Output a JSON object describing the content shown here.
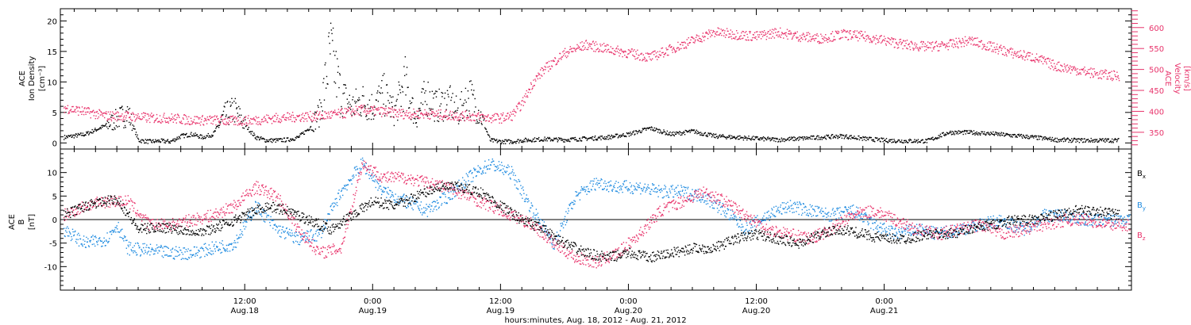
{
  "figure": {
    "xlabel": "hours:minutes, Aug. 18, 2012 - Aug. 21, 2012",
    "x_ticks": [
      {
        "top": "12:00",
        "bottom": "Aug.18"
      },
      {
        "top": "0:00",
        "bottom": "Aug.19"
      },
      {
        "top": "12:00",
        "bottom": "Aug.19"
      },
      {
        "top": "0:00",
        "bottom": "Aug.20"
      },
      {
        "top": "12:00",
        "bottom": "Aug.20"
      },
      {
        "top": "0:00",
        "bottom": "Aug.21"
      }
    ]
  },
  "colors": {
    "black": "#000000",
    "pink": "#e8336b",
    "blue": "#1f8be0"
  },
  "chart_data": [
    {
      "type": "scatter",
      "panel": "top",
      "x_unit": "hours since 2012-08-18 00:00 UT",
      "xlim": [
        -5.3,
        95.2
      ],
      "left_axis": {
        "label_lines": [
          "ACE",
          "Ion Density",
          "[cm⁻³]"
        ],
        "ylim": [
          -1,
          22
        ],
        "ticks": [
          0,
          5,
          10,
          15,
          20
        ]
      },
      "right_axis": {
        "label_lines": [
          "ACE",
          "Velocity",
          "[km/s]"
        ],
        "ylim": [
          310,
          645
        ],
        "ticks": [
          350,
          400,
          450,
          500,
          550,
          600
        ]
      },
      "series": [
        {
          "axis": "left",
          "color": "#000000",
          "x": [
            -5,
            -3,
            -1,
            0,
            1,
            2,
            3,
            4,
            5,
            6,
            7,
            8,
            9,
            10,
            11,
            12,
            13,
            14,
            15,
            16,
            17,
            18,
            19,
            20,
            21,
            22,
            23,
            24,
            25,
            26,
            27,
            28,
            29,
            30,
            31,
            32,
            33,
            34,
            35,
            36,
            37,
            38,
            40,
            42,
            44,
            46,
            48,
            50,
            52,
            54,
            56,
            58,
            60,
            62,
            64,
            66,
            68,
            70,
            72,
            74,
            76,
            78,
            80,
            82,
            84,
            86,
            88,
            90,
            92,
            94
          ],
          "y": [
            1,
            1.5,
            3,
            4,
            5,
            0.5,
            0.3,
            0.4,
            0.3,
            1.2,
            1.5,
            1,
            1.5,
            4.5,
            5.5,
            3,
            1,
            0.5,
            0.5,
            0.6,
            1,
            2.5,
            5,
            15,
            8,
            6,
            7,
            6,
            8,
            5,
            10,
            4,
            8,
            6,
            7,
            5,
            8,
            5,
            0.5,
            0.3,
            0.3,
            0.5,
            0.7,
            0.6,
            0.8,
            1,
            1.5,
            2.5,
            1.5,
            2,
            1.2,
            1,
            0.8,
            0.6,
            0.8,
            1,
            1.2,
            0.8,
            0.5,
            0.4,
            0.4,
            1.8,
            1.8,
            1.6,
            1.3,
            1,
            0.6,
            0.5,
            0.5,
            0.5
          ]
        },
        {
          "axis": "right",
          "color": "#e8336b",
          "x": [
            -5,
            -3,
            -1,
            1,
            3,
            5,
            7,
            9,
            11,
            13,
            15,
            17,
            19,
            21,
            23,
            25,
            27,
            29,
            31,
            33,
            35,
            36,
            37,
            38,
            39,
            40,
            42,
            44,
            46,
            48,
            50,
            52,
            54,
            56,
            58,
            60,
            62,
            64,
            66,
            68,
            70,
            72,
            74,
            76,
            78,
            80,
            82,
            84,
            86,
            88,
            90,
            92,
            94
          ],
          "y": [
            410,
            400,
            390,
            390,
            385,
            385,
            380,
            380,
            378,
            380,
            385,
            388,
            390,
            395,
            405,
            400,
            395,
            395,
            392,
            390,
            385,
            385,
            390,
            420,
            470,
            500,
            540,
            560,
            550,
            540,
            530,
            550,
            570,
            590,
            585,
            580,
            590,
            580,
            575,
            585,
            580,
            570,
            560,
            555,
            560,
            570,
            555,
            540,
            530,
            510,
            500,
            490,
            485
          ]
        }
      ]
    },
    {
      "type": "scatter",
      "panel": "bottom",
      "x_unit": "hours since 2012-08-18 00:00 UT",
      "xlim": [
        -5.3,
        95.2
      ],
      "left_axis": {
        "label_lines": [
          "ACE",
          "B",
          "[nT]"
        ],
        "ylim": [
          -15,
          15
        ],
        "ticks": [
          -10,
          -5,
          0,
          5,
          10
        ]
      },
      "zero_line": true,
      "legend": {
        "placement": "right"
      },
      "series": [
        {
          "name": "Bx",
          "color": "#000000",
          "x": [
            -5,
            -3,
            -1,
            0,
            2,
            4,
            6,
            8,
            10,
            12,
            14,
            16,
            18,
            20,
            22,
            24,
            26,
            28,
            30,
            32,
            34,
            36,
            38,
            40,
            42,
            44,
            46,
            48,
            50,
            52,
            54,
            56,
            58,
            60,
            62,
            64,
            66,
            68,
            70,
            72,
            74,
            76,
            78,
            80,
            82,
            84,
            86,
            88,
            90,
            92,
            94
          ],
          "y": [
            1,
            3,
            4,
            4.5,
            -2,
            -1.5,
            -2,
            -2.5,
            -1,
            1,
            3,
            2,
            0,
            -2,
            1,
            4,
            3,
            5,
            7,
            7,
            6,
            3,
            0,
            -2,
            -5,
            -7,
            -8,
            -7,
            -8,
            -7,
            -6,
            -6,
            -4,
            -3,
            -4,
            -5,
            -3,
            -2,
            -3,
            -4,
            -4,
            -3,
            -3,
            -2,
            -1,
            0,
            0,
            1,
            2,
            2,
            1
          ]
        },
        {
          "name": "By",
          "color": "#1f8be0",
          "x": [
            -5,
            -3,
            -1,
            0,
            1,
            3,
            5,
            7,
            9,
            11,
            13,
            15,
            17,
            19,
            21,
            23,
            25,
            27,
            29,
            31,
            33,
            35,
            37,
            39,
            41,
            43,
            45,
            47,
            49,
            51,
            53,
            55,
            57,
            59,
            61,
            63,
            65,
            67,
            69,
            71,
            73,
            75,
            77,
            79,
            81,
            83,
            85,
            87,
            89,
            91,
            93,
            95
          ],
          "y": [
            -2,
            -5,
            -4,
            -1,
            -6,
            -6.5,
            -7,
            -7,
            -6,
            -5,
            3,
            -2,
            -4,
            -3,
            6,
            12,
            6,
            4,
            2,
            5,
            9,
            12,
            10,
            2,
            -5,
            5,
            8,
            7,
            7,
            6,
            6,
            5,
            2,
            -2,
            1,
            3,
            2,
            1,
            2,
            -1,
            -3,
            -2,
            -3,
            -2,
            -1,
            0,
            -2,
            1,
            1,
            0,
            0,
            0
          ]
        },
        {
          "name": "Bz",
          "color": "#e8336b",
          "x": [
            -5,
            -3,
            -1,
            1,
            3,
            5,
            7,
            9,
            11,
            13,
            15,
            17,
            19,
            21,
            23,
            25,
            27,
            29,
            31,
            33,
            35,
            37,
            39,
            41,
            43,
            45,
            47,
            49,
            51,
            53,
            55,
            57,
            59,
            61,
            63,
            65,
            67,
            69,
            71,
            73,
            75,
            77,
            79,
            81,
            83,
            85,
            87,
            89,
            91,
            93,
            95
          ],
          "y": [
            1,
            3,
            4,
            4,
            -1,
            -1,
            0,
            1,
            3,
            7,
            5,
            -2,
            -7,
            -6,
            12,
            9,
            9,
            8,
            7,
            5,
            3,
            1,
            -1,
            -5,
            -8,
            -9,
            -7,
            -3,
            2,
            4,
            6,
            4,
            1,
            -2,
            -3,
            -4,
            -2,
            1,
            2,
            0,
            -2,
            -3,
            -2,
            -1,
            -3,
            -2,
            -1,
            0,
            0,
            -1,
            -1
          ]
        }
      ]
    }
  ]
}
